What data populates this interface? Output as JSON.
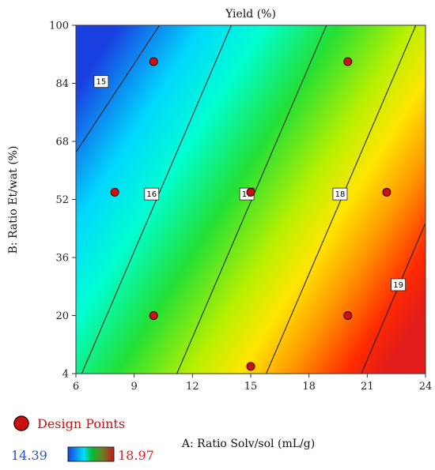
{
  "chart_data": {
    "type": "contour",
    "title": "Yield (%)",
    "xlabel": "A: Ratio Solv/sol (mL/g)",
    "ylabel": "B: Ratio Et/wat (%)",
    "xlim": [
      6,
      24
    ],
    "ylim": [
      4,
      100
    ],
    "x_ticks": [
      "6",
      "9",
      "12",
      "15",
      "18",
      "21",
      "24"
    ],
    "y_ticks": [
      "4",
      "20",
      "36",
      "52",
      "68",
      "84",
      "100"
    ],
    "x_tick_values": [
      6,
      9,
      12,
      15,
      18,
      21,
      24
    ],
    "y_tick_values": [
      4,
      20,
      36,
      52,
      68,
      84,
      100
    ],
    "color_range": {
      "min": 14.39,
      "max": 18.97,
      "min_label": "14.39",
      "max_label": "18.97",
      "min_color": "#1e4fd8",
      "max_color": "#e02020"
    },
    "contours": [
      {
        "level": "15",
        "points": [
          [
            6,
            65
          ],
          [
            10.3,
            100
          ]
        ],
        "label_at": [
          7.3,
          84.5
        ]
      },
      {
        "level": "16",
        "points": [
          [
            6.3,
            4
          ],
          [
            14,
            100
          ]
        ],
        "label_at": [
          9.9,
          53.5
        ]
      },
      {
        "level": "17",
        "points": [
          [
            11.2,
            4
          ],
          [
            18.9,
            100
          ]
        ],
        "label_at": [
          14.8,
          53.5
        ]
      },
      {
        "level": "18",
        "points": [
          [
            15.8,
            4
          ],
          [
            23.5,
            100
          ]
        ],
        "label_at": [
          19.6,
          53.5
        ]
      },
      {
        "level": "19",
        "points": [
          [
            20.7,
            4
          ],
          [
            24,
            45.5
          ]
        ],
        "label_at": [
          22.6,
          28.5
        ]
      }
    ],
    "design_points": [
      {
        "x": 10,
        "y": 90
      },
      {
        "x": 20,
        "y": 90
      },
      {
        "x": 8,
        "y": 54
      },
      {
        "x": 15,
        "y": 54
      },
      {
        "x": 22,
        "y": 54
      },
      {
        "x": 10,
        "y": 20
      },
      {
        "x": 20,
        "y": 20
      },
      {
        "x": 15,
        "y": 6
      }
    ],
    "legend": {
      "label": "Design Points",
      "color": "#cc1111",
      "placement": "bottom-left"
    },
    "grid": false
  }
}
